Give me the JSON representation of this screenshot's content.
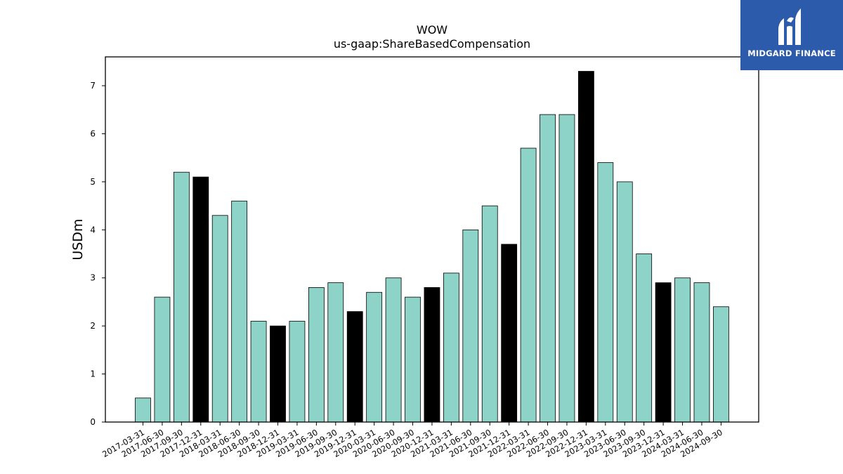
{
  "chart_data": {
    "type": "bar",
    "title": "WOW",
    "subtitle": "us-gaap:ShareBasedCompensation",
    "ylabel": "USDm",
    "xlabel": "",
    "ylim": [
      0,
      7.6
    ],
    "yticks": [
      0,
      1,
      2,
      3,
      4,
      5,
      6,
      7
    ],
    "grid": false,
    "categories": [
      "2017-03-31",
      "2017-06-30",
      "2017-09-30",
      "2017-12-31",
      "2018-03-31",
      "2018-06-30",
      "2018-09-30",
      "2018-12-31",
      "2019-03-31",
      "2019-06-30",
      "2019-09-30",
      "2019-12-31",
      "2020-03-31",
      "2020-06-30",
      "2020-09-30",
      "2020-12-31",
      "2021-03-31",
      "2021-06-30",
      "2021-09-30",
      "2021-12-31",
      "2022-03-31",
      "2022-06-30",
      "2022-09-30",
      "2022-12-31",
      "2023-03-31",
      "2023-06-30",
      "2023-09-30",
      "2023-12-31",
      "2024-03-31",
      "2024-06-30",
      "2024-09-30"
    ],
    "values": [
      0.5,
      2.6,
      5.2,
      5.1,
      4.3,
      4.6,
      2.1,
      2.0,
      2.1,
      2.8,
      2.9,
      2.3,
      2.7,
      3.0,
      2.6,
      2.8,
      3.1,
      4.0,
      4.5,
      3.7,
      5.7,
      6.4,
      6.4,
      7.3,
      5.4,
      5.0,
      3.5,
      2.9,
      3.0,
      2.9,
      2.4
    ],
    "highlight": [
      false,
      false,
      false,
      true,
      false,
      false,
      false,
      true,
      false,
      false,
      false,
      true,
      false,
      false,
      false,
      true,
      false,
      false,
      false,
      true,
      false,
      false,
      false,
      true,
      false,
      false,
      false,
      true,
      false,
      false,
      false
    ],
    "colors": {
      "bar": "#8dd3c7",
      "highlight": "#000000",
      "edge": "#000000"
    }
  },
  "logo": {
    "text": "MIDGARD FINANCE",
    "background": "#2d5bab"
  }
}
